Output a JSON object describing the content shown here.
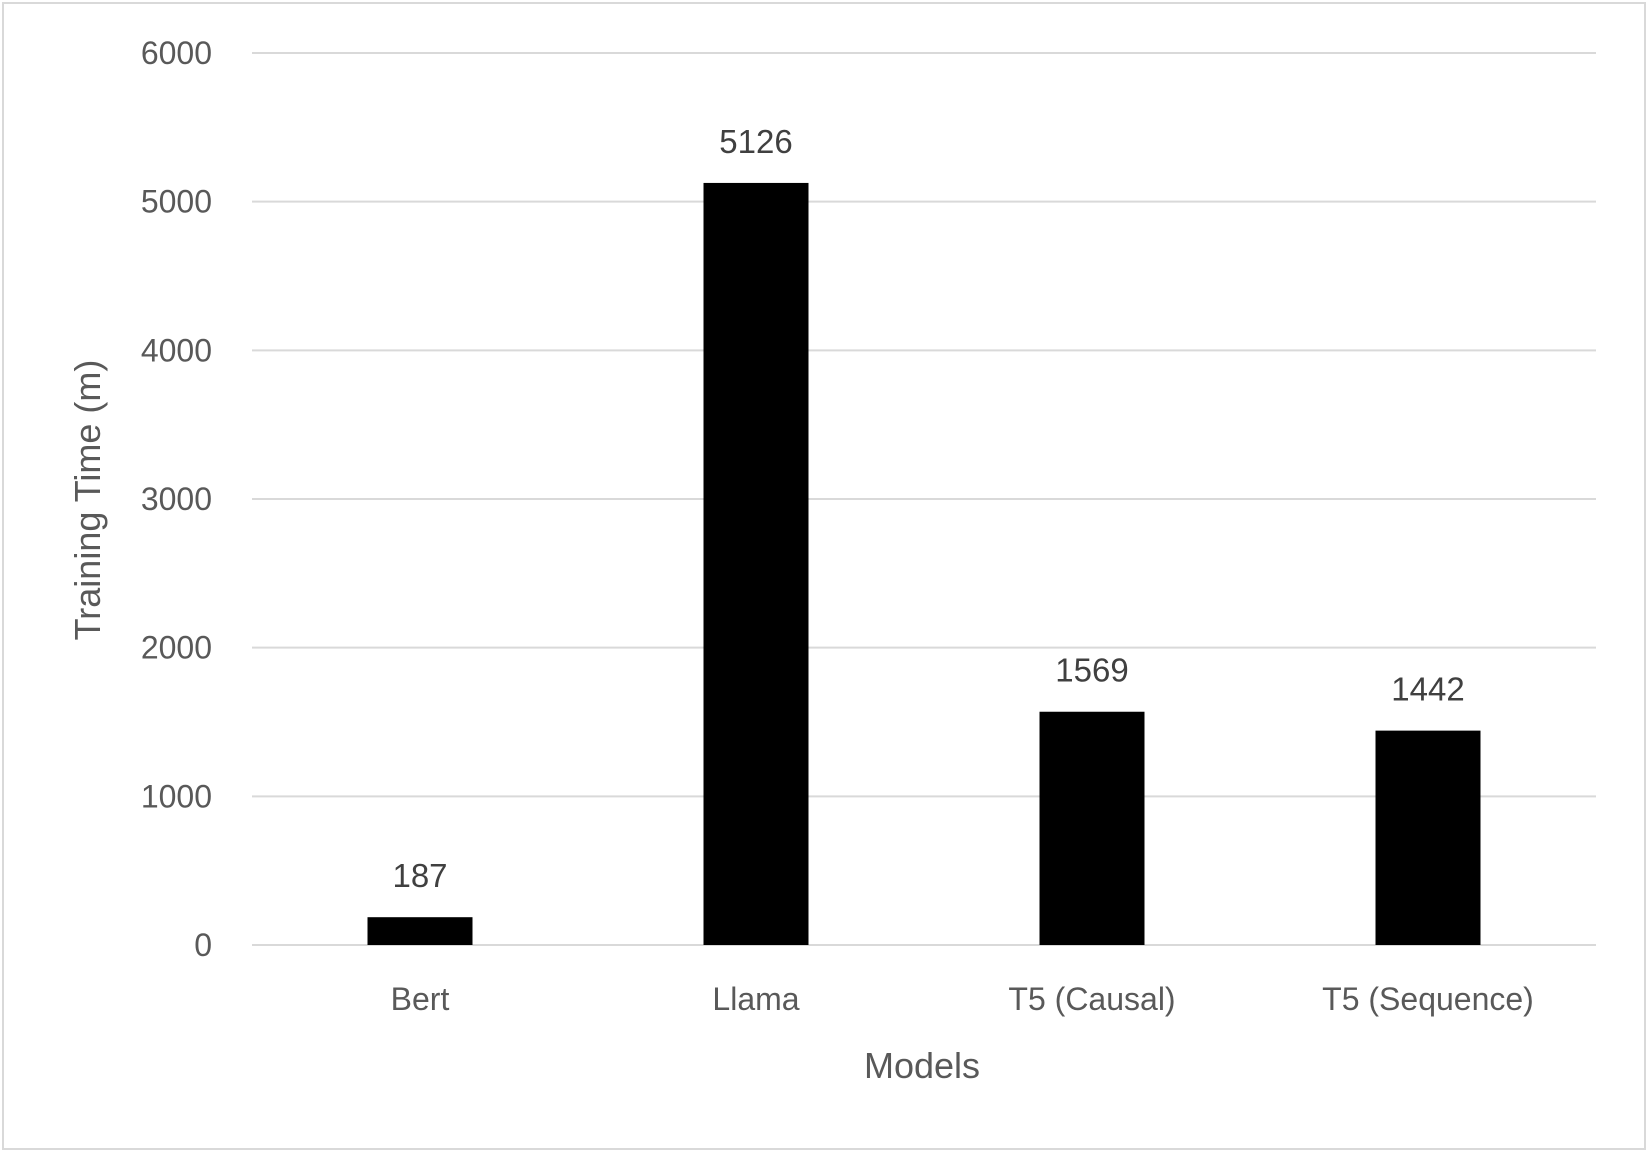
{
  "chart_data": {
    "type": "bar",
    "categories": [
      "Bert",
      "Llama",
      "T5 (Causal)",
      "T5 (Sequence)"
    ],
    "values": [
      187,
      5126,
      1569,
      1442
    ],
    "data_labels": [
      "187",
      "5126",
      "1569",
      "1442"
    ],
    "title": "",
    "xlabel": "Models",
    "ylabel": "Training Time (m)",
    "ylim": [
      0,
      6000
    ],
    "yticks": [
      "0",
      "1000",
      "2000",
      "3000",
      "4000",
      "5000",
      "6000"
    ],
    "grid": true,
    "legend": "none",
    "bar_color": "#000000",
    "grid_color": "#d9d9d9"
  }
}
